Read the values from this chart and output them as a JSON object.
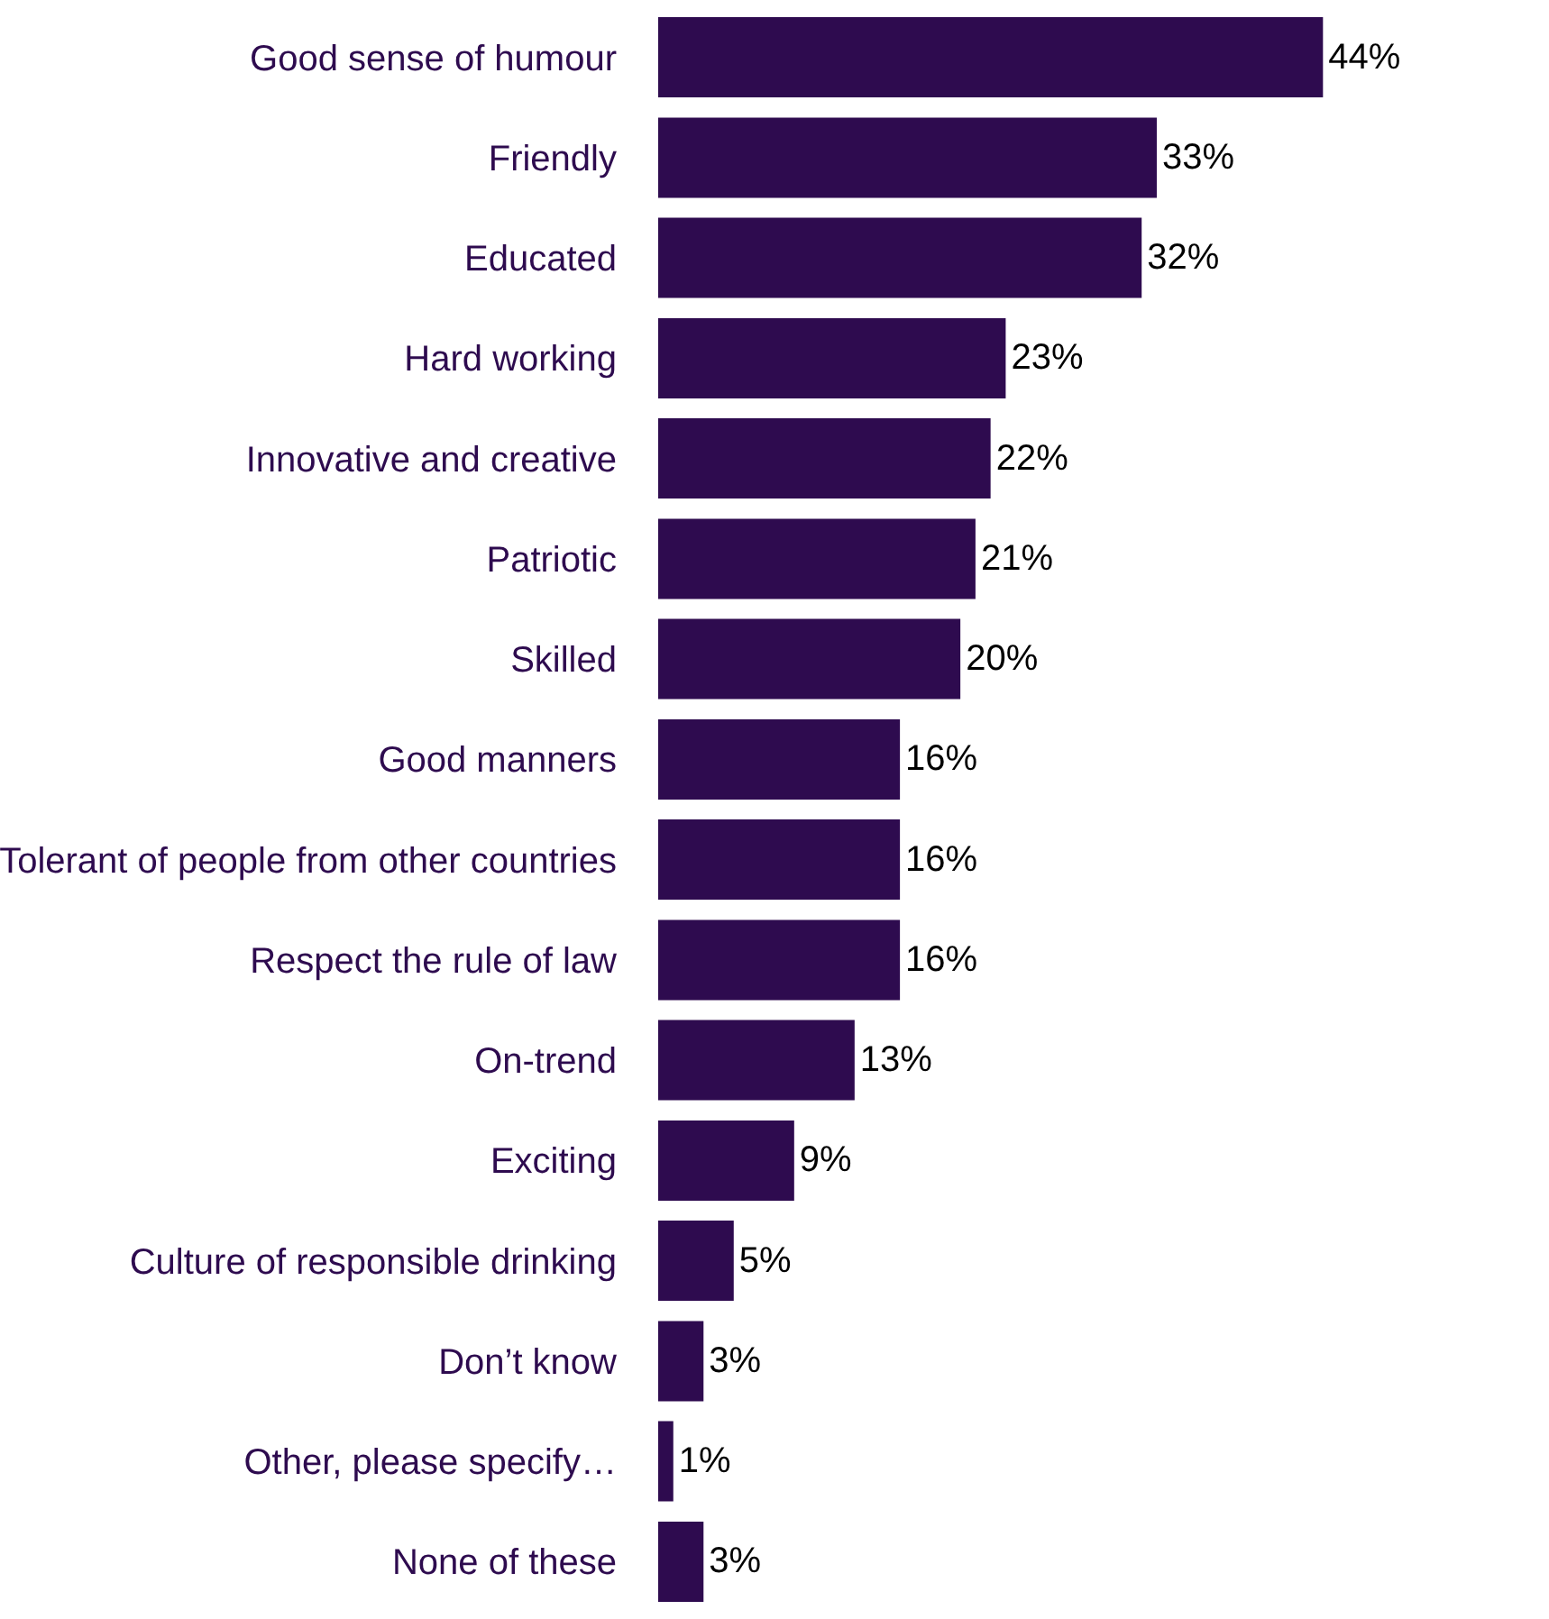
{
  "chart_data": {
    "type": "bar",
    "orientation": "horizontal",
    "categories": [
      "Good sense of humour",
      "Friendly",
      "Educated",
      "Hard working",
      "Innovative and creative",
      "Patriotic",
      "Skilled",
      "Good manners",
      "Tolerant of people from other countries",
      "Respect the rule of law",
      "On-trend",
      "Exciting",
      "Culture of responsible drinking",
      "Don’t know",
      "Other, please specify…",
      "None of these"
    ],
    "values": [
      44,
      33,
      32,
      23,
      22,
      21,
      20,
      16,
      16,
      16,
      13,
      9,
      5,
      3,
      1,
      3
    ],
    "value_labels": [
      "44%",
      "33%",
      "32%",
      "23%",
      "22%",
      "21%",
      "20%",
      "16%",
      "16%",
      "16%",
      "13%",
      "9%",
      "5%",
      "3%",
      "1%",
      "3%"
    ],
    "color": "#2e0b4f"
  }
}
